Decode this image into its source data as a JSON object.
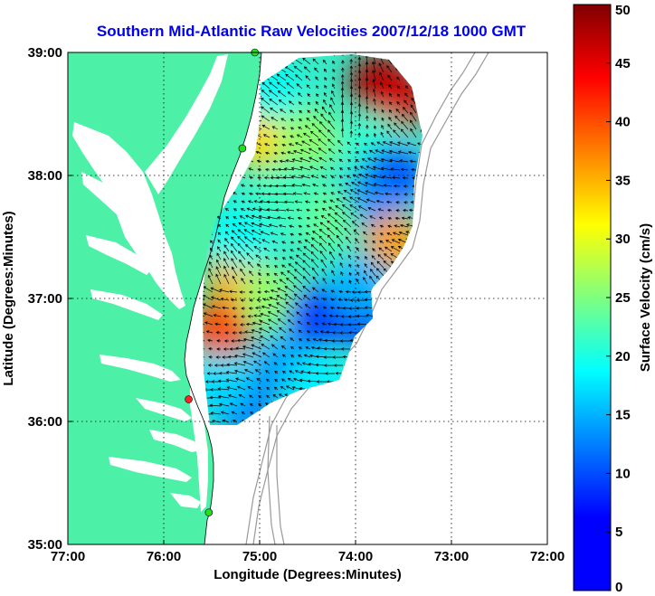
{
  "chart_data": {
    "type": "heatmap",
    "title": "Southern Mid-Atlantic Raw Velocities 2007/12/18 1000 GMT",
    "xlabel": "Longitude (Degrees:Minutes)",
    "ylabel": "Latitude (Degrees:Minutes)",
    "xlim": [
      -77,
      -72
    ],
    "ylim": [
      35,
      39
    ],
    "x_ticks": [
      -77,
      -76,
      -75,
      -74,
      -73,
      -72
    ],
    "x_tick_labels": [
      "77:00",
      "76:00",
      "75:00",
      "74:00",
      "73:00",
      "72:00"
    ],
    "y_ticks": [
      35,
      36,
      37,
      38,
      39
    ],
    "y_tick_labels": [
      "35:00",
      "36:00",
      "37:00",
      "38:00",
      "39:00"
    ],
    "grid": true,
    "colorbar": {
      "label": "Surface Velocity (cm/s)",
      "range": [
        0,
        50
      ],
      "ticks": [
        0,
        5,
        10,
        15,
        20,
        25,
        30,
        35,
        40,
        45,
        50
      ],
      "tick_labels": [
        "0",
        "5",
        "10",
        "15",
        "20",
        "25",
        "30",
        "35",
        "40",
        "45",
        "50"
      ],
      "colormap": "jet"
    },
    "speed_features": [
      {
        "lon": -73.75,
        "lat": 38.75,
        "speed": 48
      },
      {
        "lon": -73.55,
        "lat": 38.6,
        "speed": 46
      },
      {
        "lon": -75.1,
        "lat": 38.55,
        "speed": 38
      },
      {
        "lon": -75.0,
        "lat": 38.3,
        "speed": 33
      },
      {
        "lon": -74.5,
        "lat": 38.3,
        "speed": 26
      },
      {
        "lon": -73.8,
        "lat": 38.25,
        "speed": 21
      },
      {
        "lon": -73.6,
        "lat": 38.0,
        "speed": 10
      },
      {
        "lon": -73.85,
        "lat": 37.75,
        "speed": 13
      },
      {
        "lon": -73.6,
        "lat": 37.45,
        "speed": 36
      },
      {
        "lon": -74.3,
        "lat": 37.65,
        "speed": 24
      },
      {
        "lon": -74.75,
        "lat": 37.8,
        "speed": 22
      },
      {
        "lon": -75.25,
        "lat": 37.2,
        "speed": 35
      },
      {
        "lon": -75.4,
        "lat": 36.75,
        "speed": 40
      },
      {
        "lon": -75.2,
        "lat": 37.5,
        "speed": 19
      },
      {
        "lon": -74.9,
        "lat": 37.0,
        "speed": 26
      },
      {
        "lon": -74.4,
        "lat": 36.85,
        "speed": 9
      },
      {
        "lon": -73.95,
        "lat": 36.85,
        "speed": 10
      },
      {
        "lon": -74.75,
        "lat": 36.45,
        "speed": 14
      },
      {
        "lon": -75.2,
        "lat": 36.15,
        "speed": 11
      },
      {
        "lon": -75.4,
        "lat": 36.3,
        "speed": 17
      },
      {
        "lon": -74.4,
        "lat": 36.3,
        "speed": 18
      },
      {
        "lon": -73.95,
        "lat": 37.1,
        "speed": 15
      },
      {
        "lon": -74.9,
        "lat": 38.7,
        "speed": 19
      }
    ],
    "stations": [
      {
        "lon": -75.05,
        "lat": 39.0,
        "color": "#22dd22"
      },
      {
        "lon": -75.18,
        "lat": 38.22,
        "color": "#22dd22"
      },
      {
        "lon": -75.74,
        "lat": 36.18,
        "color": "#ff2222"
      },
      {
        "lon": -75.53,
        "lat": 35.26,
        "color": "#22dd22"
      }
    ],
    "colors": {
      "land": "#4cf0a6",
      "ocean": "#ffffff",
      "vectors": "#000000",
      "bathymetry": "#999999",
      "title": "#0000ee"
    }
  }
}
